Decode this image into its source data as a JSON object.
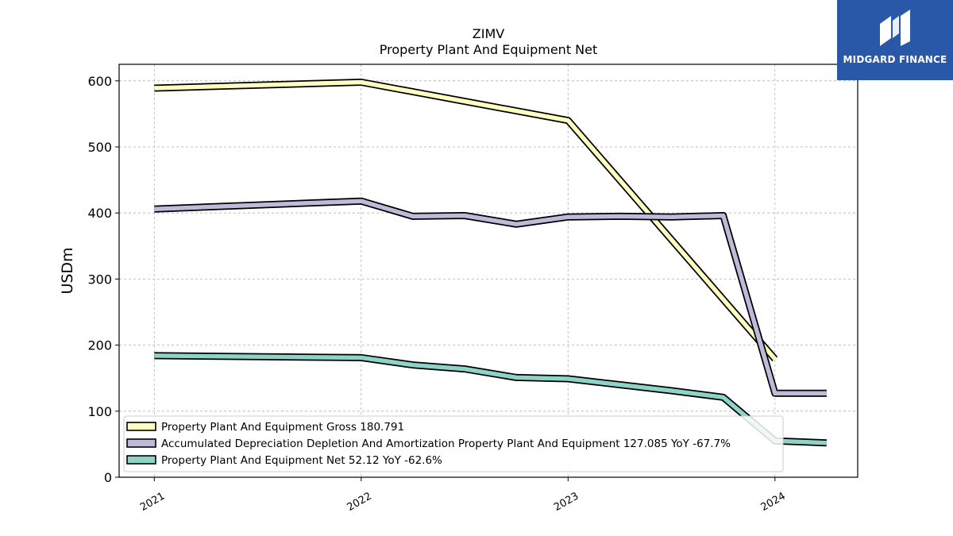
{
  "chart_data": {
    "type": "line",
    "title": "ZIMV",
    "subtitle": "Property Plant And Equipment Net",
    "xlabel": "",
    "ylabel": "USDm",
    "xlim": [
      2020.83,
      2024.4
    ],
    "ylim": [
      0,
      625
    ],
    "x_ticks": [
      {
        "value": 2021,
        "label": "2021"
      },
      {
        "value": 2022,
        "label": "2022"
      },
      {
        "value": 2023,
        "label": "2023"
      },
      {
        "value": 2024,
        "label": "2024"
      }
    ],
    "y_ticks": [
      0,
      100,
      200,
      300,
      400,
      500,
      600
    ],
    "grid": true,
    "legend_position": "bottom-left",
    "series": [
      {
        "name": "Property Plant And Equipment Gross  180.791",
        "color": "#ffffbf",
        "points": [
          [
            2021.0,
            589
          ],
          [
            2022.0,
            598
          ],
          [
            2023.0,
            540
          ],
          [
            2024.0,
            179
          ]
        ]
      },
      {
        "name": "Accumulated Depreciation Depletion And Amortization Property Plant And Equipment  127.085 YoY -67.7%",
        "color": "#bebada",
        "points": [
          [
            2021.0,
            406
          ],
          [
            2022.0,
            418
          ],
          [
            2022.25,
            395
          ],
          [
            2022.5,
            396
          ],
          [
            2022.75,
            383
          ],
          [
            2023.0,
            394
          ],
          [
            2023.25,
            395
          ],
          [
            2023.5,
            394
          ],
          [
            2023.75,
            396
          ],
          [
            2024.0,
            127
          ],
          [
            2024.25,
            127
          ]
        ]
      },
      {
        "name": "Property Plant And Equipment Net  52.12 YoY -62.6%",
        "color": "#8dd3c7",
        "points": [
          [
            2021.0,
            184
          ],
          [
            2022.0,
            181
          ],
          [
            2022.25,
            170
          ],
          [
            2022.5,
            164
          ],
          [
            2022.75,
            151
          ],
          [
            2023.0,
            149
          ],
          [
            2023.25,
            140
          ],
          [
            2023.5,
            131
          ],
          [
            2023.75,
            121
          ],
          [
            2024.0,
            55
          ],
          [
            2024.25,
            52
          ]
        ]
      }
    ]
  },
  "logo": {
    "text": "MIDGARD FINANCE",
    "background": "#2a58a8"
  }
}
